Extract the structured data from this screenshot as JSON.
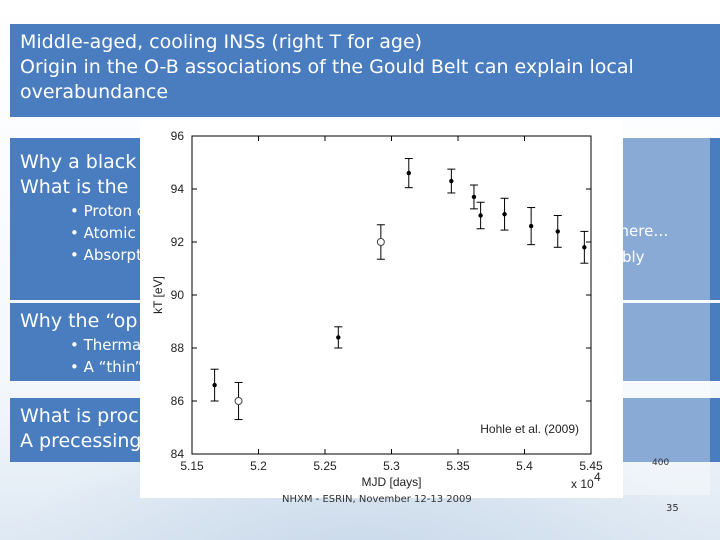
{
  "slide": {
    "box1_lines": [
      "Middle-aged, cooling INSs (right T for age)",
      "Origin  in the O-B associations of the Gould Belt can explain local",
      "overabundance"
    ],
    "box2_lines": [
      "Why a black",
      "What is the"
    ],
    "box2_bullets": [
      "• Proton c",
      "• Atomic t",
      "• Absorpti"
    ],
    "box2_right": [
      "phere…",
      "sibly"
    ],
    "box3_lines": [
      "Why the “op"
    ],
    "box3_bullets": [
      "• Thermal",
      "• A “thin”"
    ],
    "box4_lines": [
      "What is proc",
      "A precessing"
    ],
    "peek_400": "400",
    "footer": "NHXM - ESRIN, November 12-13 2009",
    "page_number": "35",
    "colors": {
      "box_blue": "#4a7dbf",
      "text_white": "#ffffff"
    }
  },
  "chart_data": {
    "type": "scatter",
    "xlabel": "MJD [days]",
    "ylabel": "kT [eV]",
    "x_multiplier_label": "x 10",
    "x_multiplier_exp": "4",
    "xlim": [
      5.15,
      5.45
    ],
    "ylim": [
      84,
      96
    ],
    "xticks": [
      5.15,
      5.2,
      5.25,
      5.3,
      5.35,
      5.4,
      5.45
    ],
    "yticks": [
      84,
      86,
      88,
      90,
      92,
      94,
      96
    ],
    "annotation": "Hohle et al. (2009)",
    "series": [
      {
        "marker": "filled",
        "points": [
          {
            "x": 5.167,
            "y": 86.6,
            "err": 0.6
          },
          {
            "x": 5.26,
            "y": 88.4,
            "err": 0.4
          },
          {
            "x": 5.313,
            "y": 94.6,
            "err": 0.55
          },
          {
            "x": 5.345,
            "y": 94.3,
            "err": 0.45
          },
          {
            "x": 5.362,
            "y": 93.7,
            "err": 0.45
          },
          {
            "x": 5.367,
            "y": 93.0,
            "err": 0.5
          },
          {
            "x": 5.385,
            "y": 93.05,
            "err": 0.6
          },
          {
            "x": 5.405,
            "y": 92.6,
            "err": 0.7
          },
          {
            "x": 5.425,
            "y": 92.4,
            "err": 0.6
          },
          {
            "x": 5.445,
            "y": 91.8,
            "err": 0.6
          }
        ]
      },
      {
        "marker": "open",
        "points": [
          {
            "x": 5.185,
            "y": 86.0,
            "err": 0.7
          },
          {
            "x": 5.292,
            "y": 92.0,
            "err": 0.65
          }
        ]
      }
    ]
  }
}
